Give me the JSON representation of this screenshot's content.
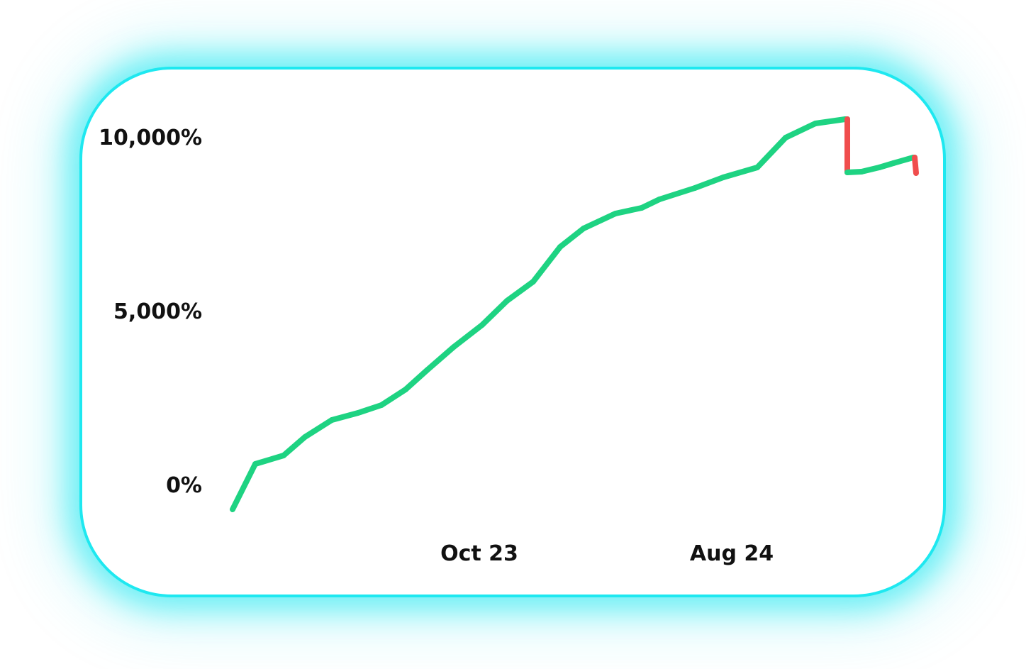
{
  "chart_data": {
    "type": "line",
    "title": "",
    "xlabel": "",
    "ylabel": "",
    "y_ticks": [
      {
        "value": 0,
        "label": "0%"
      },
      {
        "value": 5000,
        "label": "5,000%"
      },
      {
        "value": 10000,
        "label": "10,000%"
      }
    ],
    "x_ticks": [
      {
        "value": "2023-10",
        "label": "Oct 23"
      },
      {
        "value": "2024-08",
        "label": "Aug 24"
      }
    ],
    "ylim": [
      -700,
      10500
    ],
    "xlim": [
      "2022-06",
      "2025-03"
    ],
    "grid": false,
    "legend": "none",
    "colors": {
      "up": "#1ed382",
      "down": "#f04d4d",
      "border": "#1ee8f0"
    },
    "series": [
      {
        "x": [
          "2022-06-15",
          "2022-07-10",
          "2022-08-10",
          "2022-09-10",
          "2022-10-10",
          "2022-11-10",
          "2022-12-10",
          "2023-01-10",
          "2023-02-10",
          "2023-03-10",
          "2023-04-10",
          "2023-05-10",
          "2023-06-10",
          "2023-07-10",
          "2023-08-10",
          "2023-09-10",
          "2023-10-10",
          "2023-11-10",
          "2023-12-10",
          "2024-01-10",
          "2024-02-10",
          "2024-03-10",
          "2024-04-10",
          "2024-05-10",
          "2024-06-10",
          "2024-07-10",
          "2024-08-10",
          "2024-09-10",
          "2024-10-10",
          "2024-11-10",
          "2024-12-10",
          "2025-01-10",
          "2025-01-12",
          "2025-02-10",
          "2025-03-05",
          "2025-03-08"
        ],
        "y": [
          -700,
          620,
          820,
          1450,
          1850,
          2050,
          2250,
          2700,
          3450,
          4100,
          4650,
          5400,
          5850,
          6800,
          7350,
          7700,
          7850,
          8100,
          8300,
          8550,
          8800,
          9050,
          9300,
          9900,
          10150,
          10450,
          10450,
          9000,
          9050,
          9150,
          9300,
          9500,
          9500,
          9000,
          9000,
          9000
        ]
      }
    ]
  }
}
